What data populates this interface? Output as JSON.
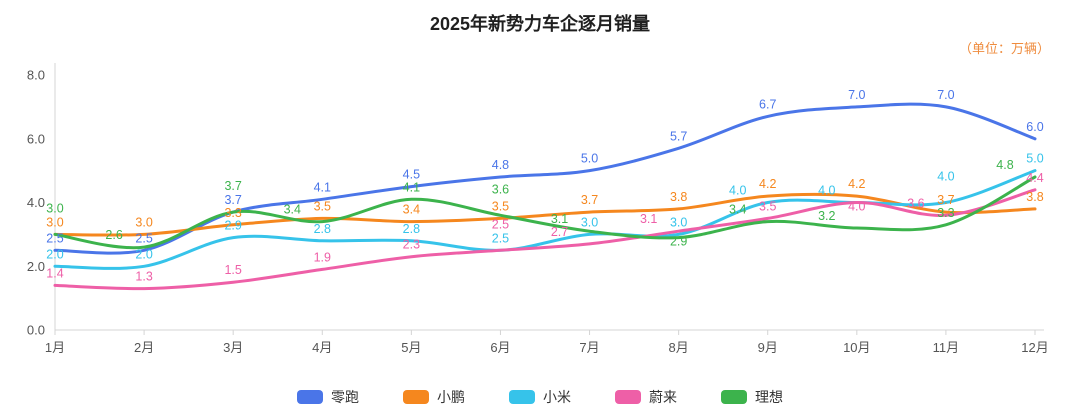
{
  "title": "2025年新势力车企逐月销量",
  "unit_label": "（单位：万辆）",
  "chart_data": {
    "type": "line",
    "smooth": true,
    "title": "2025年新势力车企逐月销量",
    "unit": "万辆",
    "x_categories": [
      "1月",
      "2月",
      "3月",
      "4月",
      "5月",
      "6月",
      "7月",
      "8月",
      "9月",
      "10月",
      "11月",
      "12月"
    ],
    "y_ticks": [
      "0.0",
      "2.0",
      "4.0",
      "6.0",
      "8.0"
    ],
    "ylim": [
      0,
      8
    ],
    "grid": false,
    "legend_position": "bottom",
    "data_labels": true,
    "series": [
      {
        "name": "零跑",
        "color": "#4a75e8",
        "values": [
          2.5,
          2.5,
          3.7,
          4.1,
          4.5,
          4.8,
          5.0,
          5.7,
          6.7,
          7.0,
          7.0,
          6.0
        ]
      },
      {
        "name": "小鹏",
        "color": "#f5871e",
        "values": [
          3.0,
          3.0,
          3.3,
          3.5,
          3.4,
          3.5,
          3.7,
          3.8,
          4.2,
          4.2,
          3.7,
          3.8
        ]
      },
      {
        "name": "小米",
        "color": "#36c3ea",
        "values": [
          2.0,
          2.0,
          2.9,
          2.8,
          2.8,
          2.5,
          3.0,
          3.0,
          4.0,
          4.0,
          4.0,
          5.0
        ]
      },
      {
        "name": "蔚来",
        "color": "#ee5fa7",
        "values": [
          1.4,
          1.3,
          1.5,
          1.9,
          2.3,
          2.5,
          2.7,
          3.1,
          3.5,
          4.0,
          3.6,
          4.4
        ]
      },
      {
        "name": "理想",
        "color": "#3cb34c",
        "values": [
          3.0,
          2.6,
          3.7,
          3.4,
          4.1,
          3.6,
          3.1,
          2.9,
          3.4,
          3.2,
          3.3,
          4.8
        ]
      }
    ],
    "colors": {
      "title": "#1f1f1f",
      "unit": "#ef8c3e",
      "axis_label": "#555555",
      "axis_line": "#d4d4d4"
    }
  }
}
